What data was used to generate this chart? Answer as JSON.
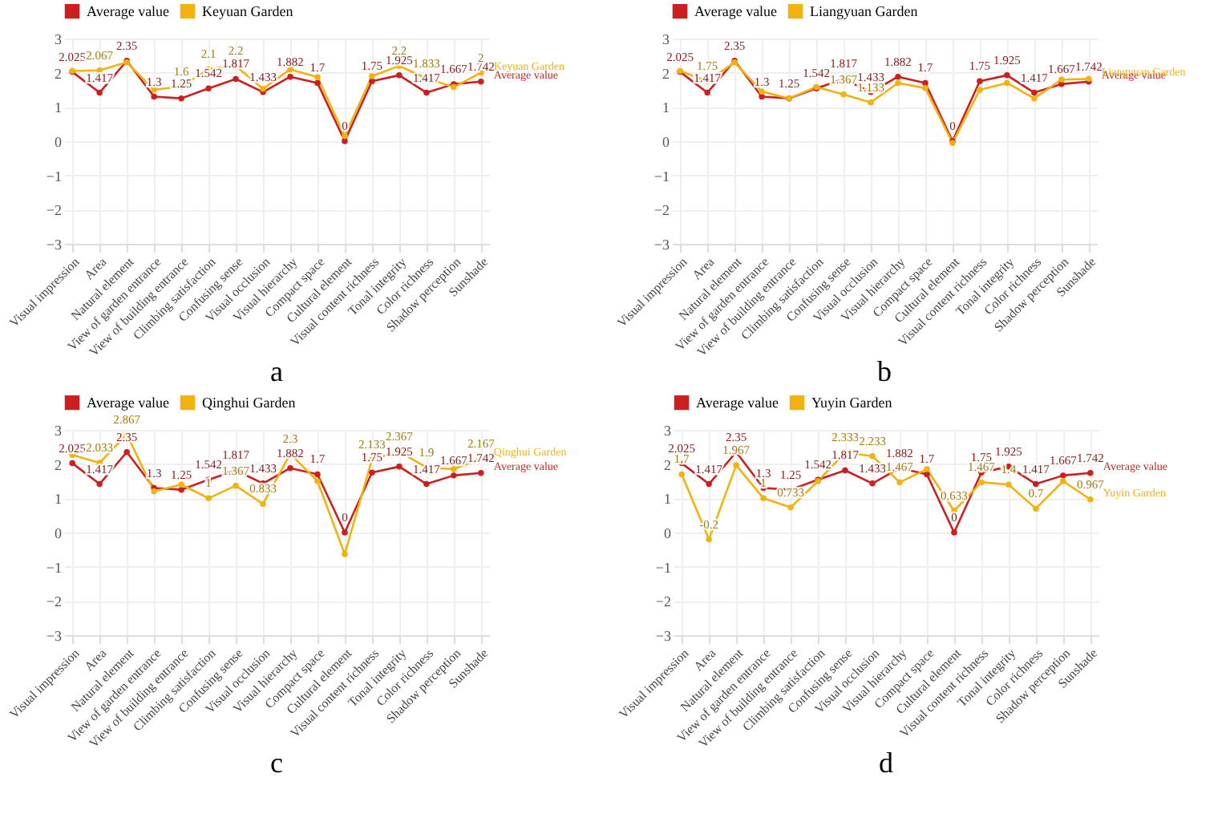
{
  "chart_data": [
    {
      "type": "line",
      "title": "a",
      "categories": [
        "Visual impression",
        "Area",
        "Natural element",
        "View of garden entrance",
        "View of building entrance",
        "Climbing satisfaction",
        "Confusing sense",
        "Visual occlusion",
        "Visual hierarchy",
        "Compact space",
        "Cultural element",
        "Visual content richness",
        "Tonal integrity",
        "Color richness",
        "Shadow perception",
        "Sunshade"
      ],
      "series": [
        {
          "name": "Average value",
          "color": "#cc1f1f",
          "values": [
            2.025,
            1.417,
            2.35,
            1.3,
            1.25,
            1.542,
            1.817,
            1.433,
            1.882,
            1.7,
            0,
            1.75,
            1.925,
            1.417,
            1.667,
            1.742
          ],
          "value_labels": [
            "2.025",
            "1.417",
            "2.35",
            "1.3",
            "1.25",
            "1.542",
            "1.817",
            "1.433",
            "1.882",
            "1.7",
            "0",
            "1.75",
            "1.925",
            "1.417",
            "1.667",
            "1.742"
          ]
        },
        {
          "name": "Keyuan Garden",
          "color": "#f2b20f",
          "values": [
            2.05,
            2.067,
            2.3,
            1.5,
            1.6,
            2.1,
            2.2,
            1.53,
            2.1,
            1.87,
            0.15,
            1.9,
            2.2,
            1.833,
            1.58,
            2
          ],
          "value_labels": [
            null,
            "2.067",
            null,
            null,
            "1.6",
            "2.1",
            "2.2",
            null,
            null,
            null,
            null,
            null,
            "2.2",
            "1.833",
            null,
            "2"
          ]
        }
      ],
      "ylim": [
        -3,
        3
      ],
      "yticks": [
        -3,
        -2,
        -1,
        0,
        1,
        2,
        3
      ],
      "grid": true,
      "legend": "top left",
      "marker": "circle",
      "line_style": "solid"
    },
    {
      "type": "line",
      "title": "b",
      "categories": [
        "Visual impression",
        "Area",
        "Natural element",
        "View of garden entrance",
        "View of building entrance",
        "Climbing satisfaction",
        "Confusing sense",
        "Visual occlusion",
        "Visual hierarchy",
        "Compact space",
        "Cultural element",
        "Visual content richness",
        "Tonal integrity",
        "Color richness",
        "Shadow perception",
        "Sunshade"
      ],
      "series": [
        {
          "name": "Average value",
          "color": "#cc1f1f",
          "values": [
            2.025,
            1.417,
            2.35,
            1.3,
            1.25,
            1.542,
            1.817,
            1.433,
            1.882,
            1.7,
            0,
            1.75,
            1.925,
            1.417,
            1.667,
            1.742
          ],
          "value_labels": [
            "2.025",
            "1.417",
            "2.35",
            "1.3",
            "1.25",
            "1.542",
            "1.817",
            "1.433",
            "1.882",
            "1.7",
            "0",
            "1.75",
            "1.925",
            "1.417",
            "1.667",
            "1.742"
          ]
        },
        {
          "name": "Liangyuan Garden",
          "color": "#f2b20f",
          "values": [
            2.05,
            1.75,
            2.3,
            1.45,
            1.25,
            1.583,
            1.367,
            1.133,
            1.7,
            1.55,
            -0.05,
            1.5,
            1.7,
            1.25,
            1.8,
            1.82
          ],
          "value_labels": [
            null,
            "1.75",
            null,
            null,
            null,
            null,
            "1.367",
            "1.133",
            null,
            null,
            null,
            null,
            null,
            null,
            null,
            null
          ]
        }
      ],
      "ylim": [
        -3,
        3
      ],
      "yticks": [
        -3,
        -2,
        -1,
        0,
        1,
        2,
        3
      ],
      "grid": true,
      "legend": "top left",
      "marker": "circle",
      "line_style": "solid"
    },
    {
      "type": "line",
      "title": "c",
      "categories": [
        "Visual impression",
        "Area",
        "Natural element",
        "View of garden entrance",
        "View of building entrance",
        "Climbing satisfaction",
        "Confusing sense",
        "Visual occlusion",
        "Visual hierarchy",
        "Compact space",
        "Cultural element",
        "Visual content richness",
        "Tonal integrity",
        "Color richness",
        "Shadow perception",
        "Sunshade"
      ],
      "series": [
        {
          "name": "Average value",
          "color": "#cc1f1f",
          "values": [
            2.025,
            1.417,
            2.35,
            1.3,
            1.25,
            1.542,
            1.817,
            1.433,
            1.882,
            1.7,
            0,
            1.75,
            1.925,
            1.417,
            1.667,
            1.742
          ],
          "value_labels": [
            "2.025",
            "1.417",
            "2.35",
            "1.3",
            "1.25",
            "1.542",
            "1.817",
            "1.433",
            "1.882",
            "1.7",
            "0",
            "1.75",
            "1.925",
            "1.417",
            "1.667",
            "1.742"
          ]
        },
        {
          "name": "Qinghui Garden",
          "color": "#f2b20f",
          "values": [
            2.267,
            2.033,
            2.867,
            1.2,
            1.4,
            1,
            1.367,
            0.833,
            2.3,
            1.5,
            -0.633,
            2.133,
            2.367,
            1.9,
            1.85,
            2.167
          ],
          "value_labels": [
            null,
            "2.033",
            "2.867",
            null,
            null,
            "1",
            "1.367",
            "0.833",
            "2.3",
            null,
            null,
            "2.133",
            "2.367",
            "1.9",
            null,
            "2.167"
          ]
        }
      ],
      "ylim": [
        -3,
        3
      ],
      "yticks": [
        -3,
        -2,
        -1,
        0,
        1,
        2,
        3
      ],
      "grid": true,
      "legend": "top left",
      "marker": "circle",
      "line_style": "solid"
    },
    {
      "type": "line",
      "title": "d",
      "categories": [
        "Visual impression",
        "Area",
        "Natural element",
        "View of garden entrance",
        "View of building entrance",
        "Climbing satisfaction",
        "Confusing sense",
        "Visual occlusion",
        "Visual hierarchy",
        "Compact space",
        "Cultural element",
        "Visual content richness",
        "Tonal integrity",
        "Color richness",
        "Shadow perception",
        "Sunshade"
      ],
      "series": [
        {
          "name": "Average value",
          "color": "#cc1f1f",
          "values": [
            2.025,
            1.417,
            2.35,
            1.3,
            1.25,
            1.542,
            1.817,
            1.433,
            1.882,
            1.7,
            0,
            1.75,
            1.925,
            1.417,
            1.667,
            1.742
          ],
          "value_labels": [
            "2.025",
            "1.417",
            "2.35",
            "1.3",
            "1.25",
            "1.542",
            "1.817",
            "1.433",
            "1.882",
            "1.7",
            "0",
            "1.75",
            "1.925",
            "1.417",
            "1.667",
            "1.742"
          ]
        },
        {
          "name": "Yuyin Garden",
          "color": "#f2b20f",
          "values": [
            1.7,
            -0.2,
            1.967,
            1,
            0.733,
            1.5,
            2.333,
            2.233,
            1.467,
            1.85,
            0.633,
            1.467,
            1.4,
            0.7,
            1.5,
            0.967
          ],
          "value_labels": [
            "1.7",
            "-0.2",
            "1.967",
            "1",
            "0.733",
            null,
            "2.333",
            "2.233",
            "1.467",
            null,
            "0.633",
            "1.467",
            "1.4",
            "0.7",
            null,
            "0.967"
          ]
        }
      ],
      "ylim": [
        -3,
        3
      ],
      "yticks": [
        -3,
        -2,
        -1,
        0,
        1,
        2,
        3
      ],
      "grid": true,
      "legend": "top left",
      "marker": "circle",
      "line_style": "solid"
    }
  ]
}
